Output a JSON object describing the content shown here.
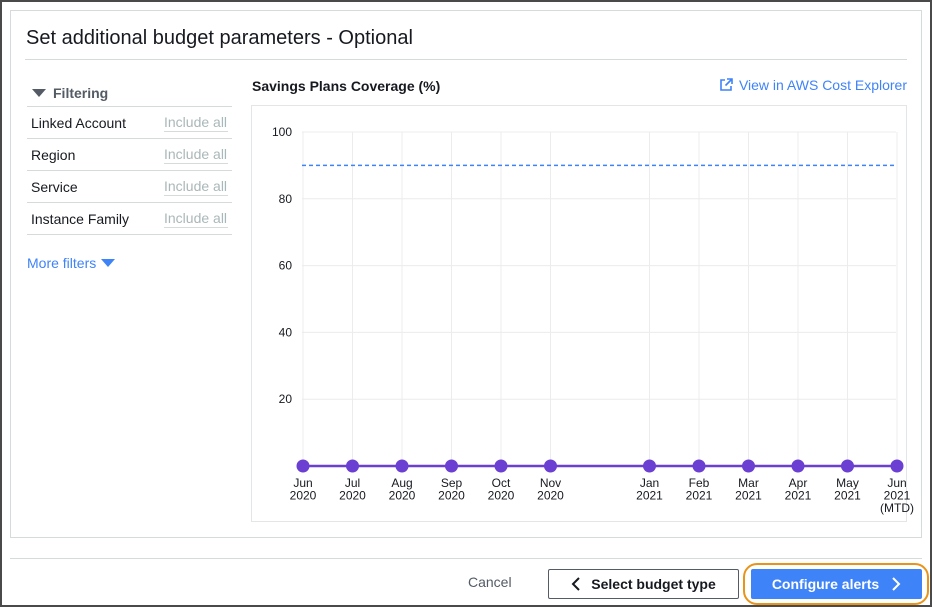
{
  "section": {
    "title": "Set additional budget parameters - Optional"
  },
  "filtering": {
    "header": "Filtering",
    "rows": [
      {
        "label": "Linked Account",
        "value": "Include all"
      },
      {
        "label": "Region",
        "value": "Include all"
      },
      {
        "label": "Service",
        "value": "Include all"
      },
      {
        "label": "Instance Family",
        "value": "Include all"
      }
    ],
    "more_filters": "More filters"
  },
  "chart_header": {
    "external_link": "View in AWS Cost Explorer"
  },
  "footer": {
    "cancel": "Cancel",
    "back": "Select budget type",
    "next": "Configure alerts"
  },
  "colors": {
    "accent": "#3f83f8",
    "series": "#6a3fd1",
    "threshold": "#3f83f8",
    "highlight": "#e8941a"
  },
  "chart_data": {
    "type": "line",
    "title": "Savings Plans Coverage (%)",
    "xlabel": "",
    "ylabel": "",
    "ylim": [
      0,
      100
    ],
    "yticks": [
      20,
      40,
      60,
      80,
      100
    ],
    "grid": true,
    "categories": [
      [
        "Jun",
        "2020"
      ],
      [
        "Jul",
        "2020"
      ],
      [
        "Aug",
        "2020"
      ],
      [
        "Sep",
        "2020"
      ],
      [
        "Oct",
        "2020"
      ],
      [
        "Nov",
        "2020"
      ],
      [
        "Jan",
        "2021"
      ],
      [
        "Feb",
        "2021"
      ],
      [
        "Mar",
        "2021"
      ],
      [
        "Apr",
        "2021"
      ],
      [
        "May",
        "2021"
      ],
      [
        "Jun",
        "2021",
        "(MTD)"
      ]
    ],
    "x_months": [
      0,
      1,
      2,
      3,
      4,
      5,
      7,
      8,
      9,
      10,
      11,
      12
    ],
    "series": [
      {
        "name": "Coverage",
        "values": [
          0,
          0,
          0,
          0,
          0,
          0,
          0,
          0,
          0,
          0,
          0,
          0
        ]
      }
    ],
    "threshold": {
      "value": 90,
      "style": "dashed"
    }
  }
}
